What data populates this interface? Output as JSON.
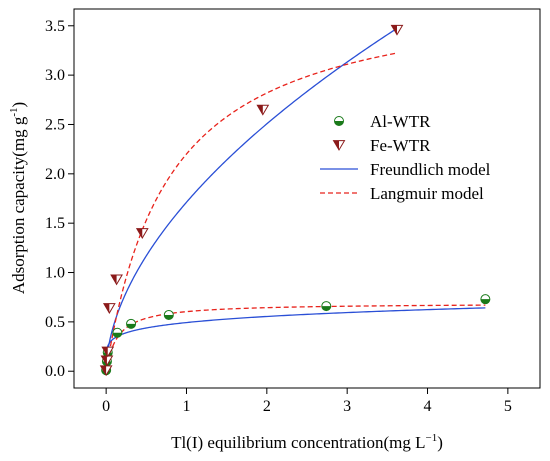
{
  "chart_data": {
    "type": "scatter",
    "xlabel": "Tl(I) equilibrium concentration(mg L",
    "xlabel_sup": "−1",
    "xlabel_tail": ")",
    "ylabel": "Adsorption capacity(mg g",
    "ylabel_sup": "-1",
    "ylabel_tail": ")",
    "xlim": [
      -0.4,
      5.4
    ],
    "ylim": [
      -0.17,
      3.67
    ],
    "xticks": [
      "0",
      "1",
      "2",
      "3",
      "4",
      "5"
    ],
    "xtick_values": [
      0,
      1,
      2,
      3,
      4,
      5
    ],
    "yticks": [
      "0.0",
      "0.5",
      "1.0",
      "1.5",
      "2.0",
      "2.5",
      "3.0",
      "3.5"
    ],
    "ytick_values": [
      0.0,
      0.5,
      1.0,
      1.5,
      2.0,
      2.5,
      3.0,
      3.5
    ],
    "grid": false,
    "legend_position": "center-right",
    "series": [
      {
        "name": "Al-WTR",
        "marker": "half-filled-circle",
        "color": "#1a7a1a",
        "points": [
          [
            0.0,
            0.01
          ],
          [
            0.01,
            0.1
          ],
          [
            0.02,
            0.19
          ],
          [
            0.14,
            0.39
          ],
          [
            0.31,
            0.48
          ],
          [
            0.78,
            0.57
          ],
          [
            2.74,
            0.66
          ],
          [
            4.72,
            0.73
          ]
        ]
      },
      {
        "name": "Fe-WTR",
        "marker": "half-filled-triangle-down",
        "color": "#8b1a1a",
        "points": [
          [
            0.0,
            0.01
          ],
          [
            0.01,
            0.11
          ],
          [
            0.02,
            0.2
          ],
          [
            0.04,
            0.64
          ],
          [
            0.13,
            0.93
          ],
          [
            0.45,
            1.4
          ],
          [
            1.95,
            2.65
          ],
          [
            3.62,
            3.46
          ]
        ]
      },
      {
        "name": "Freundlich model",
        "style": "solid",
        "color": "#2a4fd6",
        "fits": [
          {
            "kind": "freundlich",
            "K": 0.493,
            "n": 0.17,
            "x_range": [
              0.003,
              4.72
            ]
          },
          {
            "kind": "freundlich",
            "K": 1.712,
            "n": 0.55,
            "x_range": [
              0.003,
              3.62
            ]
          }
        ]
      },
      {
        "name": "Langmuir model",
        "style": "dashed",
        "color": "#e8231c",
        "fits": [
          {
            "kind": "langmuir",
            "qm": 0.69,
            "KL": 7.0,
            "x_range": [
              0.003,
              4.72
            ]
          },
          {
            "kind": "langmuir",
            "qm": 3.92,
            "KL": 1.28,
            "x_range": [
              0.003,
              3.62
            ]
          }
        ]
      }
    ]
  }
}
